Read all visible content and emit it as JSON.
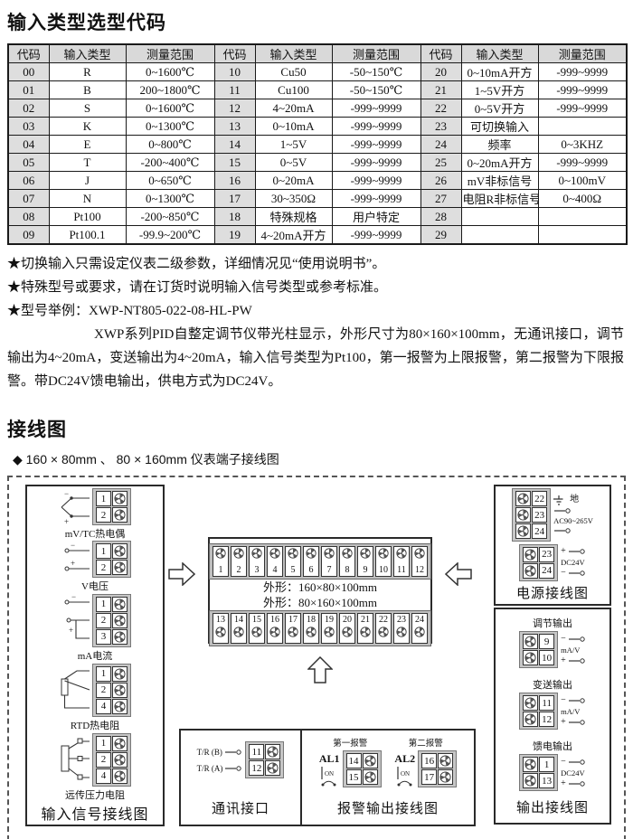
{
  "header": {
    "title": "输入类型选型代码"
  },
  "selection_table": {
    "headers": [
      "代码",
      "输入类型",
      "测量范围",
      "代码",
      "输入类型",
      "测量范围",
      "代码",
      "输入类型",
      "测量范围"
    ],
    "rows": [
      [
        "00",
        "R",
        "0~1600℃",
        "10",
        "Cu50",
        "-50~150℃",
        "20",
        "0~10mA开方",
        "-999~9999"
      ],
      [
        "01",
        "B",
        "200~1800℃",
        "11",
        "Cu100",
        "-50~150℃",
        "21",
        "1~5V开方",
        "-999~9999"
      ],
      [
        "02",
        "S",
        "0~1600℃",
        "12",
        "4~20mA",
        "-999~9999",
        "22",
        "0~5V开方",
        "-999~9999"
      ],
      [
        "03",
        "K",
        "0~1300℃",
        "13",
        "0~10mA",
        "-999~9999",
        "23",
        "可切换输入",
        ""
      ],
      [
        "04",
        "E",
        "0~800℃",
        "14",
        "1~5V",
        "-999~9999",
        "24",
        "频率",
        "0~3KHZ"
      ],
      [
        "05",
        "T",
        "-200~400℃",
        "15",
        "0~5V",
        "-999~9999",
        "25",
        "0~20mA开方",
        "-999~9999"
      ],
      [
        "06",
        "J",
        "0~650℃",
        "16",
        "0~20mA",
        "-999~9999",
        "26",
        "mV非标信号",
        "0~100mV"
      ],
      [
        "07",
        "N",
        "0~1300℃",
        "17",
        "30~350Ω",
        "-999~9999",
        "27",
        "电阻R非标信号",
        "0~400Ω"
      ],
      [
        "08",
        "Pt100",
        "-200~850℃",
        "18",
        "特殊规格",
        "用户特定",
        "28",
        "",
        ""
      ],
      [
        "09",
        "Pt100.1",
        "-99.9~200℃",
        "19",
        "4~20mA开方",
        "-999~9999",
        "29",
        "",
        ""
      ]
    ]
  },
  "notes": [
    "★切换输入只需设定仪表二级参数，详细情况见“使用说明书”。",
    "★特殊型号或要求，请在订货时说明输入信号类型或参考标准。",
    "★型号举例：XWP-NT805-022-08-HL-PW"
  ],
  "example_paragraph": "XWP系列PID自整定调节仪带光柱显示，外形尺寸为80×160×100mm，无通讯接口，调节输出为4~20mA，变送输出为4~20mA，输入信号类型为Pt100，第一报警为上限报警，第二报警为下限报警。带DC24V馈电输出，供电方式为DC24V。",
  "wiring": {
    "section_title": "接线图",
    "bullet": "◆ 160 × 80mm 、 80 × 160mm 仪表端子接线图",
    "symbols": {
      "minus": "−",
      "plus": "+"
    },
    "input_box": {
      "caption": "输入信号接线图",
      "groups": [
        {
          "label": "mV/TC热电偶",
          "terminals": [
            "1",
            "2"
          ],
          "wire": "tc"
        },
        {
          "label": "V电压",
          "terminals": [
            "1",
            "2"
          ],
          "wire": "v"
        },
        {
          "label": "mA电流",
          "terminals": [
            "1",
            "2",
            "3"
          ],
          "wire": "ma"
        },
        {
          "label": "RTD热电阻",
          "terminals": [
            "1",
            "2",
            "4"
          ],
          "wire": "rtd"
        },
        {
          "label": "远传压力电阻",
          "terminals": [
            "1",
            "2",
            "4"
          ],
          "wire": "pot"
        }
      ]
    },
    "terminal_strip_box": {
      "top_numbers": [
        "1",
        "2",
        "3",
        "4",
        "5",
        "6",
        "7",
        "8",
        "9",
        "10",
        "11",
        "12"
      ],
      "bottom_numbers": [
        "13",
        "14",
        "15",
        "16",
        "17",
        "18",
        "19",
        "20",
        "21",
        "22",
        "23",
        "24"
      ],
      "dim_line1": "外形：160×80×100mm",
      "dim_line2": "外形：80×160×100mm"
    },
    "power_box": {
      "caption": "电源接线图",
      "ac_group": {
        "terminals": [
          "22",
          "23",
          "24"
        ],
        "ground_label": "地",
        "range": "AC90~265V"
      },
      "dc_group": {
        "terminals": [
          "23",
          "24"
        ],
        "range": "DC24V"
      }
    },
    "output_box": {
      "caption": "输出接线图",
      "groups": [
        {
          "label": "调节输出",
          "terminals": [
            "9",
            "10"
          ],
          "unit": "mA/V"
        },
        {
          "label": "变送输出",
          "terminals": [
            "11",
            "12"
          ],
          "unit": "mA/V"
        },
        {
          "label": "馈电输出",
          "terminals": [
            "1",
            "13"
          ],
          "unit": "DC24V"
        }
      ]
    },
    "comm_box": {
      "caption": "通讯接口",
      "rows": [
        {
          "label": "T/R (B)",
          "terminal": "11"
        },
        {
          "label": "T/R (A)",
          "terminal": "12"
        }
      ]
    },
    "alarm_box": {
      "caption": "报警输出接线图",
      "groups": [
        {
          "header": "第一报警",
          "name": "AL1",
          "switch_label": "ON",
          "terminals": [
            "14",
            "15"
          ]
        },
        {
          "header": "第二报警",
          "name": "AL2",
          "switch_label": "ON",
          "terminals": [
            "16",
            "17"
          ]
        }
      ]
    }
  }
}
